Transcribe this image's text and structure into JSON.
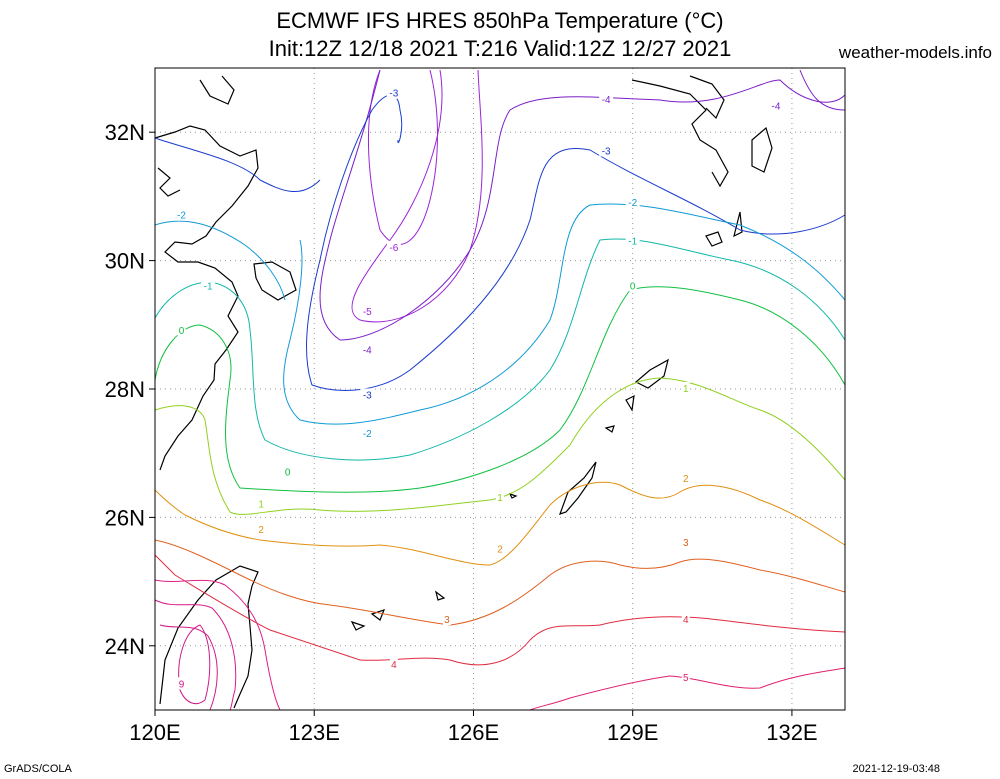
{
  "title_line1": "ECMWF IFS HRES 850hPa Temperature (°C)",
  "title_line2": "Init:12Z 12/18 2021 T:216 Valid:12Z 12/27 2021",
  "site_label": "weather-models.info",
  "footer_left": "GrADS/COLA",
  "footer_right": "2021-12-19-03:48",
  "chart_data": {
    "type": "contour-map",
    "variable": "850hPa Temperature",
    "unit": "°C",
    "lon_range": [
      120,
      133
    ],
    "lat_range": [
      23,
      33
    ],
    "x_ticks": [
      "120E",
      "123E",
      "126E",
      "129E",
      "132E"
    ],
    "y_ticks": [
      "24N",
      "26N",
      "28N",
      "30N",
      "32N"
    ],
    "grid": "dotted",
    "contour_levels": [
      -6,
      -5,
      -4,
      -3,
      -2,
      -1,
      0,
      1,
      2,
      3,
      4,
      5,
      9
    ],
    "contour_labels": [
      {
        "value": "-3",
        "color": "#1a3ccc",
        "lon": 124.5,
        "lat": 32.6
      },
      {
        "value": "-4",
        "color": "#7a1ec8",
        "lon": 128.5,
        "lat": 32.5
      },
      {
        "value": "-4",
        "color": "#7a1ec8",
        "lon": 131.7,
        "lat": 32.4
      },
      {
        "value": "-3",
        "color": "#1a3ccc",
        "lon": 128.5,
        "lat": 31.7
      },
      {
        "value": "-2",
        "color": "#109ad6",
        "lon": 120.5,
        "lat": 30.7
      },
      {
        "value": "-2",
        "color": "#109ad6",
        "lon": 129.0,
        "lat": 30.9
      },
      {
        "value": "-1",
        "color": "#10b8a8",
        "lon": 129.0,
        "lat": 30.3
      },
      {
        "value": "-6",
        "color": "#9a24d8",
        "lon": 124.5,
        "lat": 30.2
      },
      {
        "value": "-1",
        "color": "#10b8a8",
        "lon": 121.0,
        "lat": 29.6
      },
      {
        "value": "0",
        "color": "#10c040",
        "lon": 129.0,
        "lat": 29.6
      },
      {
        "value": "-5",
        "color": "#9a24d8",
        "lon": 124.0,
        "lat": 29.2
      },
      {
        "value": "0",
        "color": "#10c040",
        "lon": 120.5,
        "lat": 28.9
      },
      {
        "value": "-4",
        "color": "#7a1ec8",
        "lon": 124.0,
        "lat": 28.6
      },
      {
        "value": "-3",
        "color": "#1a3ccc",
        "lon": 124.0,
        "lat": 27.9
      },
      {
        "value": "1",
        "color": "#90d020",
        "lon": 130.0,
        "lat": 28.0
      },
      {
        "value": "-2",
        "color": "#109ad6",
        "lon": 124.0,
        "lat": 27.3
      },
      {
        "value": "0",
        "color": "#10c040",
        "lon": 122.5,
        "lat": 26.7
      },
      {
        "value": "2",
        "color": "#e09010",
        "lon": 130.0,
        "lat": 26.6
      },
      {
        "value": "1",
        "color": "#90d020",
        "lon": 126.5,
        "lat": 26.3
      },
      {
        "value": "1",
        "color": "#90d020",
        "lon": 122.0,
        "lat": 26.2
      },
      {
        "value": "2",
        "color": "#e09010",
        "lon": 122.0,
        "lat": 25.8
      },
      {
        "value": "2",
        "color": "#e09010",
        "lon": 126.5,
        "lat": 25.5
      },
      {
        "value": "3",
        "color": "#e06020",
        "lon": 130.0,
        "lat": 25.6
      },
      {
        "value": "3",
        "color": "#e06020",
        "lon": 125.5,
        "lat": 24.4
      },
      {
        "value": "4",
        "color": "#e02a40",
        "lon": 130.0,
        "lat": 24.4
      },
      {
        "value": "4",
        "color": "#e02a40",
        "lon": 124.5,
        "lat": 23.7
      },
      {
        "value": "5",
        "color": "#e02070",
        "lon": 130.0,
        "lat": 23.5
      },
      {
        "value": "9",
        "color": "#d01a8a",
        "lon": 120.5,
        "lat": 23.4
      }
    ]
  }
}
